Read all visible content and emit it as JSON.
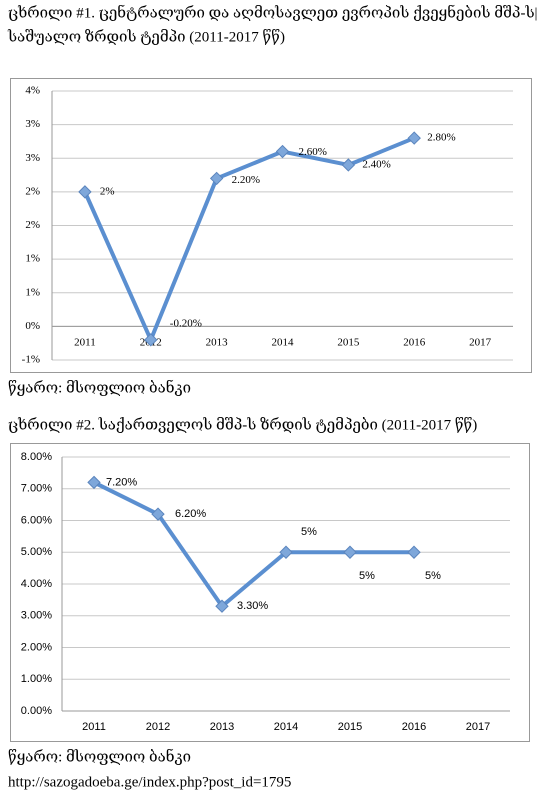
{
  "chart_data": [
    {
      "type": "line",
      "title": [
        "ცხრილი #1. ცენტრალური და აღმოსავლეთ ევროპის ქვეყნების მშპ-ს|",
        "საშუალო ზრდის ტემპი (2011-2017 წწ)"
      ],
      "categories": [
        "2011",
        "2012",
        "2013",
        "2014",
        "2015",
        "2016",
        "2017"
      ],
      "series": [
        {
          "name": "",
          "color": "#5b8fd0",
          "values": [
            2,
            -0.2,
            2.2,
            2.6,
            2.4,
            2.8,
            null
          ],
          "value_labels": [
            "2%",
            "-0.20%",
            "2.20%",
            "2.60%",
            "2.40%",
            "2.80%",
            null
          ]
        }
      ],
      "ylim": [
        -0.5,
        3.5
      ],
      "yticks": [
        {
          "value": -0.5,
          "label": "-1%"
        },
        {
          "value": 0,
          "label": "0%"
        },
        {
          "value": 0.5,
          "label": "1%"
        },
        {
          "value": 1,
          "label": "1%"
        },
        {
          "value": 1.5,
          "label": "2%"
        },
        {
          "value": 2,
          "label": "2%"
        },
        {
          "value": 2.5,
          "label": "3%"
        },
        {
          "value": 3,
          "label": "3%"
        },
        {
          "value": 3.5,
          "label": "4%"
        }
      ],
      "grid": true,
      "source": "წყარო: მსოფლიო ბანკი"
    },
    {
      "type": "line",
      "title": [
        "ცხრილი #2. საქართველოს მშპ-ს ზრდის ტემპები (2011-2017 წწ)"
      ],
      "categories": [
        "2011",
        "2012",
        "2013",
        "2014",
        "2015",
        "2016",
        "2017"
      ],
      "series": [
        {
          "name": "",
          "color": "#5b8fd0",
          "values": [
            7.2,
            6.2,
            3.3,
            5,
            5,
            5,
            null
          ],
          "value_labels": [
            "7.20%",
            "6.20%",
            "3.30%",
            "5%",
            "5%",
            "5%",
            null
          ]
        }
      ],
      "ylim": [
        0,
        8
      ],
      "yticks": [
        {
          "value": 0,
          "label": "0.00%"
        },
        {
          "value": 1,
          "label": "1.00%"
        },
        {
          "value": 2,
          "label": "2.00%"
        },
        {
          "value": 3,
          "label": "3.00%"
        },
        {
          "value": 4,
          "label": "4.00%"
        },
        {
          "value": 5,
          "label": "5.00%"
        },
        {
          "value": 6,
          "label": "6.00%"
        },
        {
          "value": 7,
          "label": "7.00%"
        },
        {
          "value": 8,
          "label": "8.00%"
        }
      ],
      "grid": true,
      "source": "წყარო: მსოფლიო ბანკი"
    }
  ],
  "url": "http://sazogadoeba.ge/index.php?post_id=1795"
}
